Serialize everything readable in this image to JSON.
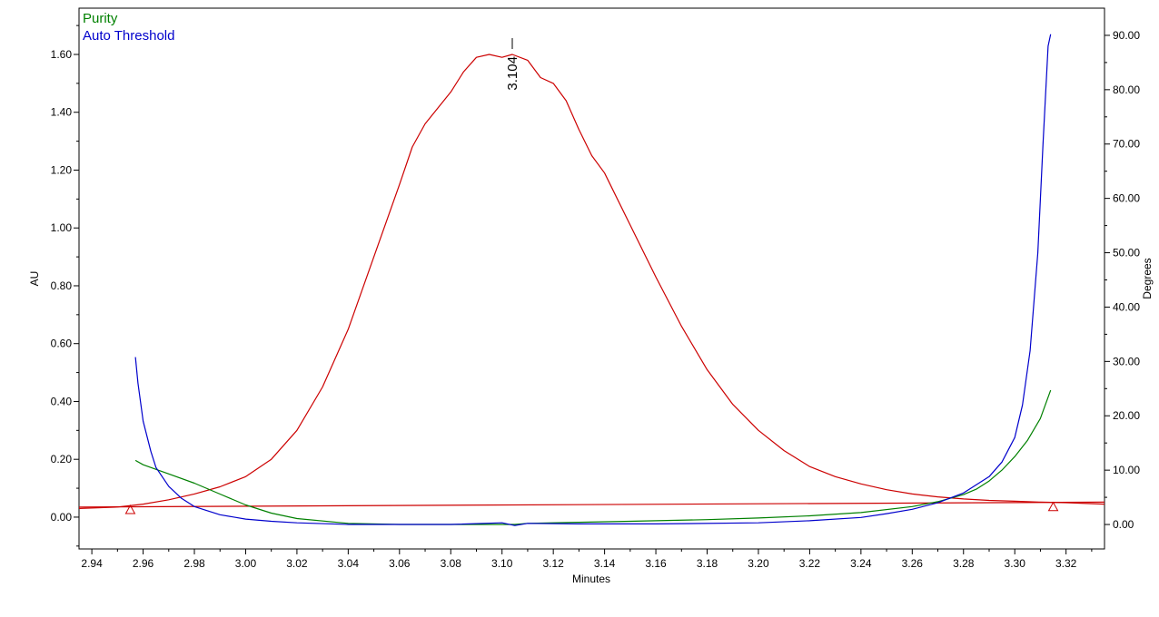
{
  "chart_data": {
    "type": "line",
    "title": "",
    "xlabel": "Minutes",
    "ylabel": "AU",
    "y2label": "Degrees",
    "xlim": [
      2.935,
      3.335
    ],
    "ylim": [
      -0.11,
      1.76
    ],
    "y2lim": [
      -4.5,
      95.0
    ],
    "x_ticks": [
      2.94,
      2.96,
      2.98,
      3.0,
      3.02,
      3.04,
      3.06,
      3.08,
      3.1,
      3.12,
      3.14,
      3.16,
      3.18,
      3.2,
      3.22,
      3.24,
      3.26,
      3.28,
      3.3,
      3.32
    ],
    "x_tick_labels": [
      "2.94",
      "2.96",
      "2.98",
      "3.00",
      "3.02",
      "3.04",
      "3.06",
      "3.08",
      "3.10",
      "3.12",
      "3.14",
      "3.16",
      "3.18",
      "3.20",
      "3.22",
      "3.24",
      "3.26",
      "3.28",
      "3.30",
      "3.32"
    ],
    "y_ticks": [
      0.0,
      0.2,
      0.4,
      0.6,
      0.8,
      1.0,
      1.2,
      1.4,
      1.6
    ],
    "y_tick_labels": [
      "0.00",
      "0.20",
      "0.40",
      "0.60",
      "0.80",
      "1.00",
      "1.20",
      "1.40",
      "1.60"
    ],
    "y2_ticks": [
      0,
      10,
      20,
      30,
      40,
      50,
      60,
      70,
      80,
      90
    ],
    "y2_tick_labels": [
      "0.00",
      "10.00",
      "20.00",
      "30.00",
      "40.00",
      "50.00",
      "60.00",
      "70.00",
      "80.00",
      "90.00"
    ],
    "grid": false,
    "legend": {
      "position": "top-left",
      "entries": [
        {
          "label": "Purity",
          "color": "#008000"
        },
        {
          "label": "Auto Threshold",
          "color": "#0000cc"
        }
      ]
    },
    "peak_label": {
      "text": "3.104",
      "x": 3.104,
      "y": 1.625
    },
    "baseline_markers": [
      {
        "x": 2.955,
        "y": 0.025
      },
      {
        "x": 3.315,
        "y": 0.035
      }
    ],
    "series": [
      {
        "name": "",
        "axis": "left",
        "color": "#cc0000",
        "x": [
          2.935,
          2.95,
          2.96,
          2.97,
          2.98,
          2.99,
          3.0,
          3.01,
          3.02,
          3.03,
          3.04,
          3.05,
          3.06,
          3.065,
          3.07,
          3.08,
          3.085,
          3.09,
          3.095,
          3.1,
          3.104,
          3.11,
          3.115,
          3.12,
          3.125,
          3.13,
          3.135,
          3.14,
          3.15,
          3.16,
          3.17,
          3.18,
          3.19,
          3.2,
          3.21,
          3.22,
          3.23,
          3.24,
          3.25,
          3.26,
          3.27,
          3.28,
          3.29,
          3.3,
          3.31,
          3.32,
          3.335
        ],
        "y": [
          0.03,
          0.035,
          0.045,
          0.06,
          0.08,
          0.105,
          0.14,
          0.2,
          0.3,
          0.45,
          0.65,
          0.9,
          1.15,
          1.28,
          1.36,
          1.47,
          1.54,
          1.59,
          1.6,
          1.59,
          1.6,
          1.58,
          1.52,
          1.5,
          1.44,
          1.34,
          1.25,
          1.19,
          1.01,
          0.83,
          0.66,
          0.51,
          0.39,
          0.3,
          0.23,
          0.175,
          0.14,
          0.115,
          0.095,
          0.08,
          0.07,
          0.063,
          0.058,
          0.055,
          0.052,
          0.05,
          0.045
        ]
      },
      {
        "name": "",
        "axis": "left",
        "color": "#cc0000",
        "x": [
          2.935,
          3.335
        ],
        "y": [
          0.035,
          0.052
        ]
      },
      {
        "name": "Purity",
        "axis": "right",
        "color": "#008000",
        "x": [
          2.957,
          2.96,
          2.97,
          2.98,
          2.99,
          3.0,
          3.01,
          3.02,
          3.04,
          3.06,
          3.08,
          3.1,
          3.105,
          3.11,
          3.13,
          3.15,
          3.18,
          3.2,
          3.22,
          3.24,
          3.26,
          3.27,
          3.28,
          3.285,
          3.29,
          3.295,
          3.3,
          3.305,
          3.31,
          3.314
        ],
        "y": [
          11.8,
          11.0,
          9.3,
          7.6,
          5.6,
          3.6,
          2.1,
          1.1,
          0.2,
          0.0,
          0.0,
          0.0,
          0.0,
          0.2,
          0.4,
          0.6,
          0.9,
          1.2,
          1.6,
          2.2,
          3.3,
          4.2,
          5.5,
          6.5,
          8.0,
          10.0,
          12.5,
          15.5,
          19.5,
          24.7
        ]
      },
      {
        "name": "Auto Threshold",
        "axis": "right",
        "color": "#0000cc",
        "x": [
          2.957,
          2.958,
          2.96,
          2.963,
          2.965,
          2.97,
          2.975,
          2.98,
          2.99,
          3.0,
          3.01,
          3.02,
          3.04,
          3.06,
          3.08,
          3.1,
          3.105,
          3.11,
          3.13,
          3.16,
          3.2,
          3.22,
          3.24,
          3.25,
          3.26,
          3.27,
          3.28,
          3.29,
          3.295,
          3.3,
          3.303,
          3.306,
          3.309,
          3.311,
          3.313,
          3.314
        ],
        "y": [
          30.8,
          26.0,
          19.0,
          13.5,
          10.5,
          7.0,
          4.8,
          3.3,
          1.8,
          1.0,
          0.6,
          0.3,
          0.0,
          0.0,
          0.0,
          0.3,
          -0.2,
          0.2,
          0.1,
          0.1,
          0.3,
          0.7,
          1.3,
          2.0,
          2.8,
          4.0,
          5.8,
          8.8,
          11.5,
          16.0,
          22.0,
          32.0,
          50.0,
          70.0,
          88.0,
          90.2
        ]
      }
    ]
  }
}
